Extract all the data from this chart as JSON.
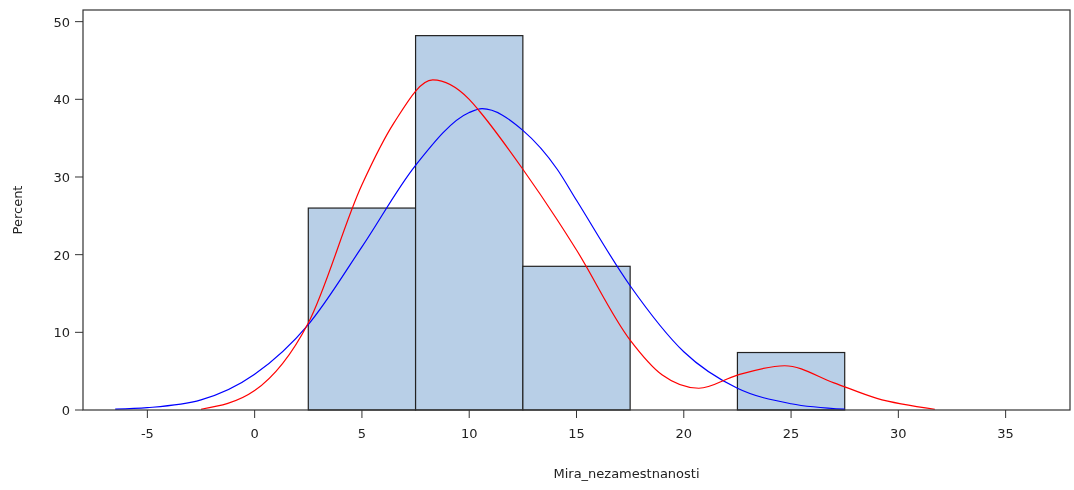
{
  "chart_data": {
    "type": "histogram",
    "xlabel": "Mira_nezamestnanosti",
    "ylabel": "Percent",
    "color": "#b8cfe7",
    "bins": [
      2.5,
      7.5,
      12.5,
      17.5,
      22.5,
      27.5
    ],
    "values": [
      26,
      48.2,
      18.5,
      0,
      7.4
    ],
    "series": [
      {
        "type": "line",
        "color": "#0000ff",
        "x": [
          -6.5,
          -5,
          -2.5,
          0,
          2.5,
          5,
          7.5,
          10,
          10.6,
          12.5,
          14.1,
          15,
          17.5,
          20,
          22.5,
          25,
          27.5
        ],
        "values": [
          0.1,
          0.3,
          1.3,
          4.6,
          11,
          21,
          31.5,
          38.3,
          38.8,
          36,
          31,
          27,
          16,
          7.5,
          2.8,
          0.8,
          0.1
        ]
      },
      {
        "type": "line",
        "color": "#ff0000",
        "x": [
          -2.5,
          0,
          2.5,
          5,
          6.5,
          8.3,
          10,
          10.5,
          12.5,
          14.1,
          15,
          17.5,
          19,
          20.7,
          22.5,
          24.7,
          27,
          29,
          31.7
        ],
        "values": [
          0.1,
          2.5,
          11.2,
          29,
          37,
          42.5,
          40,
          38.4,
          31,
          24.5,
          20.6,
          9,
          4.5,
          2.8,
          4.5,
          5.7,
          3.5,
          1.5,
          0.1
        ]
      }
    ],
    "xlim": [
      -8,
      38
    ],
    "ylim": [
      0,
      51.5
    ],
    "xticks": [
      -5,
      0,
      5,
      10,
      15,
      20,
      25,
      30,
      35
    ],
    "yticks": [
      0,
      10,
      20,
      30,
      40,
      50
    ]
  }
}
